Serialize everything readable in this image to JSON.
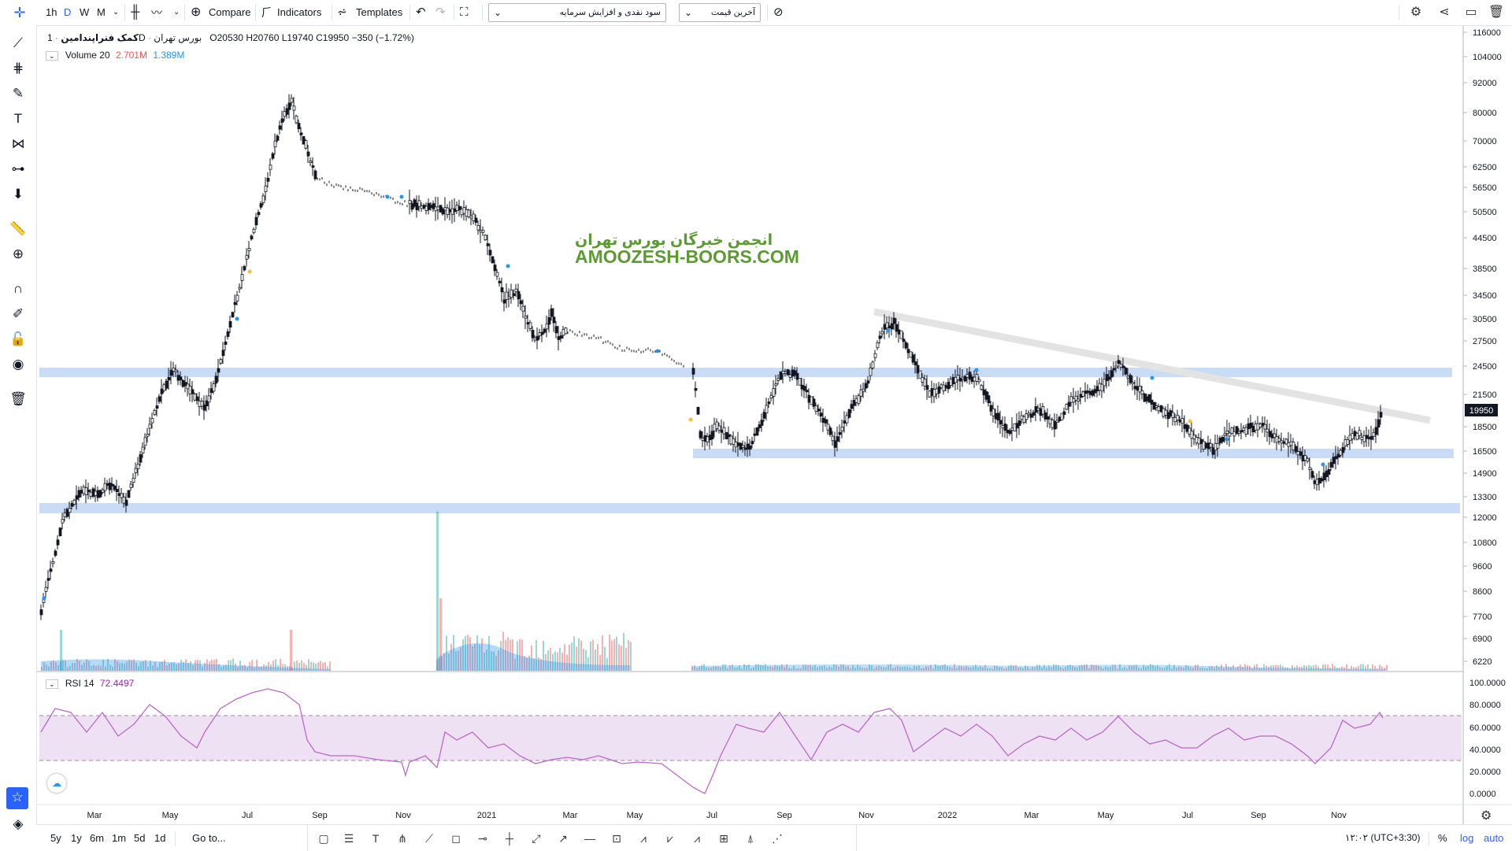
{
  "toolbar": {
    "intervals": [
      "1h",
      "D",
      "W",
      "M"
    ],
    "active_interval": "D",
    "compare": "Compare",
    "indicators": "Indicators",
    "templates": "Templates",
    "select_left": "سود نقدی و افزایش سرمایه",
    "select_right": "آخرین قیمت"
  },
  "legend": {
    "symbol": "کمک فنراپندامین",
    "interval": "1D",
    "exchange": "بورس تهران",
    "open": "O20530",
    "high": "H20760",
    "low": "L19740",
    "close": "C19950",
    "change": "−350 (−1.72%)",
    "volume_label": "Volume 20",
    "volume_v1": "2.701M",
    "volume_v2": "1.389M",
    "rsi_label": "RSI 14",
    "rsi_value": "72.4497"
  },
  "watermark": {
    "line1": "انجمن خبرگان بورس تهران",
    "line2": "AMOOZESH-BOORS.COM"
  },
  "price_axis": {
    "ticks": [
      "116000",
      "104000",
      "92000",
      "80000",
      "70000",
      "62500",
      "56500",
      "50500",
      "44500",
      "38500",
      "34500",
      "30500",
      "27500",
      "24500",
      "21500",
      "18500",
      "16500",
      "14900",
      "13300",
      "12000",
      "10800",
      "9600",
      "8600",
      "7700",
      "6900",
      "6220"
    ],
    "last_price": "19950"
  },
  "rsi_axis": {
    "ticks": [
      "100.0000",
      "80.0000",
      "60.0000",
      "40.0000",
      "20.0000",
      "0.0000"
    ]
  },
  "time_axis": {
    "labels": [
      "Mar",
      "May",
      "Jul",
      "Sep",
      "Nov",
      "2021",
      "Mar",
      "May",
      "Jul",
      "Sep",
      "Nov",
      "2022",
      "Mar",
      "May",
      "Jul",
      "Sep",
      "Nov"
    ]
  },
  "bottom": {
    "ranges": [
      "5y",
      "1y",
      "6m",
      "1m",
      "5d",
      "1d"
    ],
    "goto": "Go to...",
    "clock": "۱۲:۰۲ (UTC+3:30)",
    "percent": "%",
    "log": "log",
    "auto": "auto"
  },
  "colors": {
    "up": "#26a69a",
    "down": "#ef5350",
    "rsi_line": "#9c27b0",
    "rsi_band": "#efe1f4",
    "zone": "#c9dcf7",
    "watermark": "#5b9b32",
    "accent": "#2962ff"
  }
}
